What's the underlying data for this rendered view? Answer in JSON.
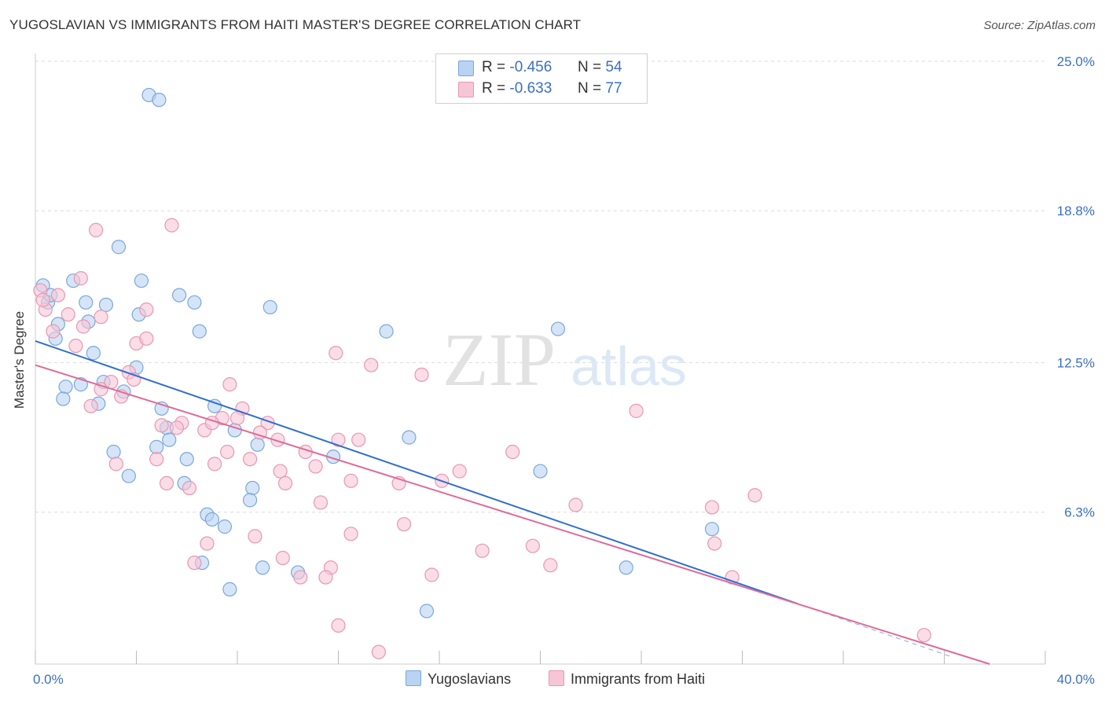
{
  "header": {
    "title": "YUGOSLAVIAN VS IMMIGRANTS FROM HAITI MASTER'S DEGREE CORRELATION CHART",
    "source": "Source: ZipAtlas.com"
  },
  "legend": {
    "r_label": "R =",
    "n_label": "N =",
    "series": [
      {
        "r": "-0.456",
        "n": "54"
      },
      {
        "r": "-0.633",
        "n": "77"
      }
    ]
  },
  "watermark": {
    "zip": "ZIP",
    "atlas": "atlas"
  },
  "colors": {
    "blue_fill": "#b9d3f2",
    "blue_stroke": "#7aa7dc",
    "blue_line": "#2e6fd0",
    "pink_fill": "#f7c6d6",
    "pink_stroke": "#e897b2",
    "pink_line": "#df6b98",
    "tick_label": "#3a6fc4",
    "grid": "#dddddd"
  },
  "chart_data": {
    "type": "scatter",
    "ylabel": "Master's Degree",
    "xlim": [
      0,
      40
    ],
    "ylim": [
      0,
      25
    ],
    "x_tick_labels": [
      {
        "value": 0,
        "label": "0.0%"
      },
      {
        "value": 40,
        "label": "40.0%"
      }
    ],
    "y_tick_labels": [
      {
        "value": 25.0,
        "label": "25.0%"
      },
      {
        "value": 18.8,
        "label": "18.8%"
      },
      {
        "value": 12.5,
        "label": "12.5%"
      },
      {
        "value": 6.3,
        "label": "6.3%"
      }
    ],
    "grid": "horizontal dashed",
    "series": [
      {
        "name": "Yugoslavians",
        "color": "#b9d3f2",
        "points": [
          [
            4.5,
            23.6
          ],
          [
            4.9,
            23.4
          ],
          [
            3.3,
            17.3
          ],
          [
            0.3,
            15.7
          ],
          [
            0.5,
            15.0
          ],
          [
            1.5,
            15.9
          ],
          [
            4.2,
            15.9
          ],
          [
            2.0,
            15.0
          ],
          [
            5.7,
            15.3
          ],
          [
            6.3,
            15.0
          ],
          [
            2.8,
            14.9
          ],
          [
            9.3,
            14.8
          ],
          [
            4.1,
            14.5
          ],
          [
            2.1,
            14.2
          ],
          [
            0.9,
            14.1
          ],
          [
            0.8,
            13.5
          ],
          [
            6.5,
            13.8
          ],
          [
            13.9,
            13.8
          ],
          [
            20.7,
            13.9
          ],
          [
            2.3,
            12.9
          ],
          [
            4.0,
            12.3
          ],
          [
            1.8,
            11.6
          ],
          [
            1.2,
            11.5
          ],
          [
            2.7,
            11.7
          ],
          [
            3.5,
            11.3
          ],
          [
            1.1,
            11.0
          ],
          [
            2.5,
            10.8
          ],
          [
            5.0,
            10.6
          ],
          [
            7.1,
            10.7
          ],
          [
            7.9,
            9.7
          ],
          [
            5.2,
            9.8
          ],
          [
            5.3,
            9.3
          ],
          [
            8.8,
            9.1
          ],
          [
            14.8,
            9.4
          ],
          [
            3.1,
            8.8
          ],
          [
            4.8,
            9.0
          ],
          [
            6.0,
            8.5
          ],
          [
            11.8,
            8.6
          ],
          [
            3.7,
            7.8
          ],
          [
            5.9,
            7.5
          ],
          [
            8.6,
            7.3
          ],
          [
            20.0,
            8.0
          ],
          [
            8.5,
            6.8
          ],
          [
            6.8,
            6.2
          ],
          [
            7.5,
            5.7
          ],
          [
            7.0,
            6.0
          ],
          [
            26.8,
            5.6
          ],
          [
            6.6,
            4.2
          ],
          [
            9.0,
            4.0
          ],
          [
            10.4,
            3.8
          ],
          [
            23.4,
            4.0
          ],
          [
            7.7,
            3.1
          ],
          [
            15.5,
            2.2
          ],
          [
            0.6,
            15.3
          ]
        ]
      },
      {
        "name": "Immigrants from Haiti",
        "color": "#f7c6d6",
        "points": [
          [
            5.4,
            18.2
          ],
          [
            2.4,
            18.0
          ],
          [
            0.2,
            15.5
          ],
          [
            1.8,
            16.0
          ],
          [
            0.9,
            15.3
          ],
          [
            0.4,
            14.7
          ],
          [
            1.3,
            14.5
          ],
          [
            4.4,
            14.7
          ],
          [
            0.7,
            13.8
          ],
          [
            1.9,
            14.0
          ],
          [
            2.6,
            14.4
          ],
          [
            4.0,
            13.3
          ],
          [
            4.4,
            13.5
          ],
          [
            1.6,
            13.2
          ],
          [
            11.9,
            12.9
          ],
          [
            13.3,
            12.4
          ],
          [
            15.3,
            12.0
          ],
          [
            3.7,
            12.1
          ],
          [
            2.6,
            11.4
          ],
          [
            3.0,
            11.7
          ],
          [
            3.9,
            11.8
          ],
          [
            7.7,
            11.6
          ],
          [
            3.4,
            11.1
          ],
          [
            2.2,
            10.7
          ],
          [
            8.2,
            10.6
          ],
          [
            23.8,
            10.5
          ],
          [
            5.8,
            10.0
          ],
          [
            7.4,
            10.2
          ],
          [
            8.0,
            10.2
          ],
          [
            9.2,
            10.0
          ],
          [
            5.6,
            9.8
          ],
          [
            5.0,
            9.9
          ],
          [
            6.7,
            9.7
          ],
          [
            8.9,
            9.6
          ],
          [
            7.0,
            10.0
          ],
          [
            9.6,
            9.3
          ],
          [
            12.0,
            9.3
          ],
          [
            12.8,
            9.3
          ],
          [
            7.6,
            8.8
          ],
          [
            8.5,
            8.5
          ],
          [
            10.7,
            8.8
          ],
          [
            18.9,
            8.8
          ],
          [
            4.8,
            8.5
          ],
          [
            3.2,
            8.3
          ],
          [
            7.1,
            8.3
          ],
          [
            11.1,
            8.2
          ],
          [
            9.7,
            8.0
          ],
          [
            16.8,
            8.0
          ],
          [
            12.5,
            7.6
          ],
          [
            14.4,
            7.5
          ],
          [
            16.1,
            7.6
          ],
          [
            5.2,
            7.5
          ],
          [
            6.1,
            7.3
          ],
          [
            9.9,
            7.5
          ],
          [
            28.5,
            7.0
          ],
          [
            11.3,
            6.7
          ],
          [
            21.4,
            6.6
          ],
          [
            26.8,
            6.5
          ],
          [
            14.6,
            5.8
          ],
          [
            8.7,
            5.3
          ],
          [
            12.5,
            5.4
          ],
          [
            19.7,
            4.9
          ],
          [
            26.9,
            5.0
          ],
          [
            6.8,
            5.0
          ],
          [
            17.7,
            4.7
          ],
          [
            9.8,
            4.4
          ],
          [
            6.3,
            4.2
          ],
          [
            20.4,
            4.1
          ],
          [
            11.7,
            4.0
          ],
          [
            15.7,
            3.7
          ],
          [
            11.5,
            3.6
          ],
          [
            10.5,
            3.6
          ],
          [
            27.6,
            3.6
          ],
          [
            12.0,
            1.6
          ],
          [
            35.2,
            1.2
          ],
          [
            13.6,
            0.5
          ],
          [
            0.3,
            15.1
          ]
        ]
      }
    ],
    "trend_lines": [
      {
        "series": "Yugoslavians",
        "x": [
          0,
          30.2
        ],
        "y": [
          13.4,
          2.5
        ],
        "dashed_extension_to_x": 36.3
      },
      {
        "series": "Immigrants from Haiti",
        "x": [
          0,
          37.8
        ],
        "y": [
          12.4,
          0.0
        ]
      }
    ]
  }
}
